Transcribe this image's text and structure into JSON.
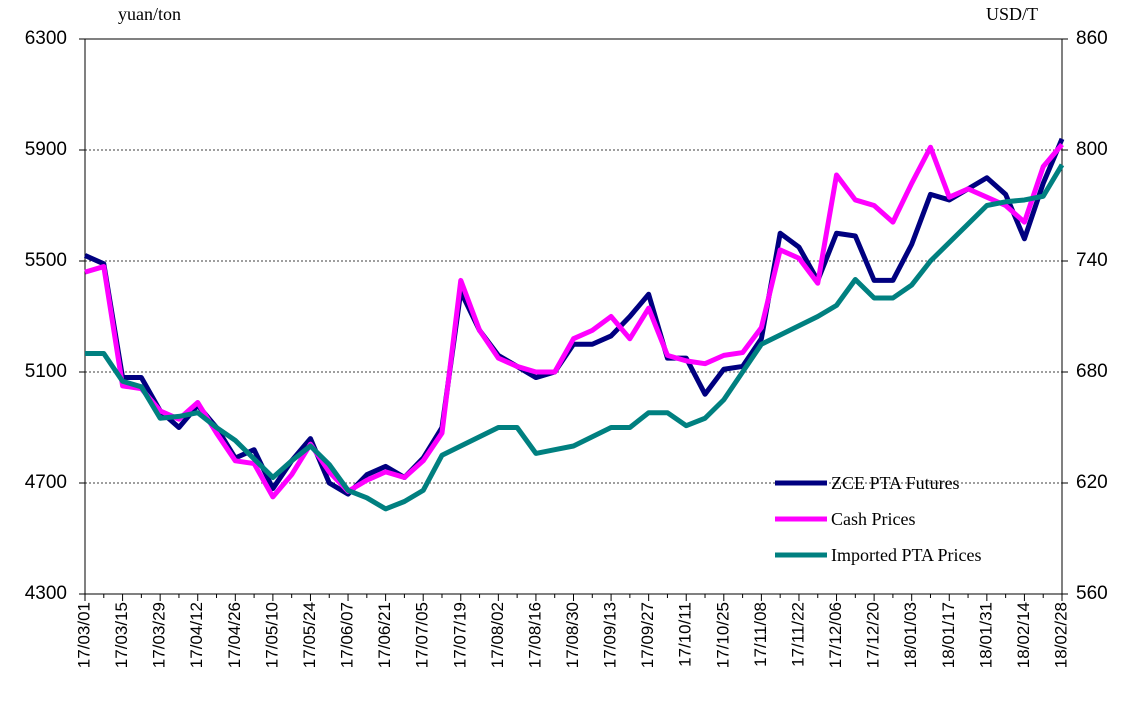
{
  "chart_data": {
    "type": "line",
    "y_label": "yuan/ton",
    "y2_label": "USD/T",
    "categories": [
      "17/03/01",
      null,
      "17/03/15",
      null,
      "17/03/29",
      null,
      "17/04/12",
      null,
      "17/04/26",
      null,
      "17/05/10",
      null,
      "17/05/24",
      null,
      "17/06/07",
      null,
      "17/06/21",
      null,
      "17/07/05",
      null,
      "17/07/19",
      null,
      "17/08/02",
      null,
      "17/08/16",
      null,
      "17/08/30",
      null,
      "17/09/13",
      null,
      "17/09/27",
      null,
      "17/10/11",
      null,
      "17/10/25",
      null,
      "17/11/08",
      null,
      "17/11/22",
      null,
      "17/12/06",
      null,
      "17/12/20",
      null,
      "18/01/03",
      null,
      "18/01/17",
      null,
      "18/01/31",
      null,
      "18/02/14",
      null,
      "18/02/28"
    ],
    "series": [
      {
        "name": "ZCE PTA Futures",
        "color": "#000080",
        "values": [
          5520,
          5490,
          5080,
          5080,
          4960,
          4900,
          4980,
          4900,
          4790,
          4820,
          4680,
          4780,
          4860,
          4700,
          4660,
          4730,
          4760,
          4720,
          4790,
          4900,
          5390,
          5250,
          5160,
          5120,
          5080,
          5100,
          5200,
          5200,
          5230,
          5300,
          5380,
          5150,
          5150,
          5020,
          5110,
          5120,
          5220,
          5600,
          5550,
          5430,
          5600,
          5590,
          5430,
          5430,
          5560,
          5740,
          5720,
          5760,
          5800,
          5740,
          5580,
          5780,
          5940
        ]
      },
      {
        "name": "Cash Prices",
        "color": "#ff00ff",
        "values": [
          5460,
          5480,
          5050,
          5040,
          4960,
          4930,
          4990,
          4880,
          4780,
          4770,
          4650,
          4730,
          4840,
          4740,
          4670,
          4710,
          4740,
          4720,
          4780,
          4880,
          5430,
          5250,
          5150,
          5120,
          5100,
          5100,
          5220,
          5250,
          5300,
          5220,
          5330,
          5160,
          5140,
          5130,
          5160,
          5170,
          5260,
          5540,
          5510,
          5420,
          5810,
          5720,
          5700,
          5640,
          5780,
          5910,
          5730,
          5760,
          5730,
          5700,
          5640,
          5840,
          5920
        ]
      },
      {
        "name": "Imported PTA Prices",
        "color": "#008080",
        "axis": "y2",
        "values": [
          690,
          690,
          675,
          672,
          655,
          656,
          658,
          650,
          643,
          633,
          623,
          632,
          640,
          630,
          616,
          612,
          606,
          610,
          616,
          635,
          640,
          645,
          650,
          650,
          636,
          638,
          640,
          645,
          650,
          650,
          658,
          658,
          651,
          655,
          665,
          680,
          695,
          700,
          705,
          710,
          716,
          730,
          720,
          720,
          727,
          740,
          750,
          760,
          770,
          772,
          773,
          775,
          792
        ]
      }
    ],
    "ylim": [
      4300,
      6300
    ],
    "yticks": [
      4300,
      4700,
      5100,
      5500,
      5900,
      6300
    ],
    "y2lim": [
      560,
      860
    ],
    "y2ticks": [
      560,
      620,
      680,
      740,
      800,
      860
    ],
    "grid": true,
    "legend": "lower right"
  }
}
